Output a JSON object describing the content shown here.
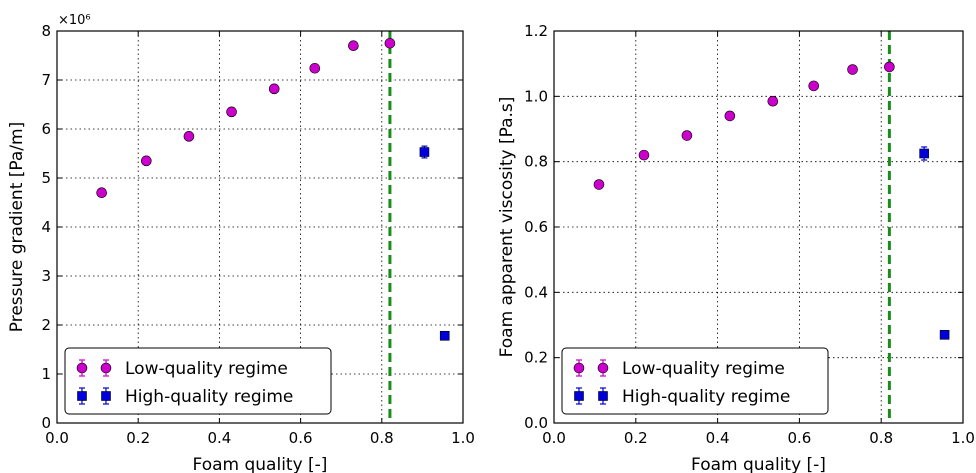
{
  "chart_data": [
    {
      "type": "scatter",
      "xlabel": "Foam quality [-]",
      "ylabel": "Pressure gradient [Pa/m]",
      "y_multiplier_label": "×10⁶",
      "xlim": [
        0.0,
        1.0
      ],
      "ylim": [
        0,
        8
      ],
      "xticks": [
        "0.0",
        "0.2",
        "0.4",
        "0.6",
        "0.8",
        "1.0"
      ],
      "yticks": [
        "0",
        "1",
        "2",
        "3",
        "4",
        "5",
        "6",
        "7",
        "8"
      ],
      "grid": true,
      "vline": {
        "x": 0.82,
        "color": "#1a8c1a",
        "style": "dashed"
      },
      "legend_position": "lower-left",
      "series": [
        {
          "name": "Low-quality regime",
          "marker": "circle",
          "color": "#cc00cc",
          "x": [
            0.11,
            0.22,
            0.325,
            0.43,
            0.535,
            0.635,
            0.73,
            0.82
          ],
          "y": [
            4.7,
            5.35,
            5.85,
            6.35,
            6.82,
            7.24,
            7.7,
            7.75
          ],
          "yerr": [
            0.04,
            0.04,
            0.04,
            0.04,
            0.04,
            0.04,
            0.04,
            0.04
          ]
        },
        {
          "name": "High-quality regime",
          "marker": "square",
          "color": "#0000dd",
          "x": [
            0.905,
            0.955
          ],
          "y": [
            5.53,
            1.78
          ],
          "yerr": [
            0.12,
            0.04
          ]
        }
      ]
    },
    {
      "type": "scatter",
      "xlabel": "Foam quality [-]",
      "ylabel": "Foam apparent viscosity [Pa.s]",
      "xlim": [
        0.0,
        1.0
      ],
      "ylim": [
        0.0,
        1.2
      ],
      "xticks": [
        "0.0",
        "0.2",
        "0.4",
        "0.6",
        "0.8",
        "1.0"
      ],
      "yticks": [
        "0.0",
        "0.2",
        "0.4",
        "0.6",
        "0.8",
        "1.0",
        "1.2"
      ],
      "grid": true,
      "vline": {
        "x": 0.82,
        "color": "#1a8c1a",
        "style": "dashed"
      },
      "legend_position": "lower-left",
      "series": [
        {
          "name": "Low-quality regime",
          "marker": "circle",
          "color": "#cc00cc",
          "x": [
            0.11,
            0.22,
            0.325,
            0.43,
            0.535,
            0.635,
            0.73,
            0.82
          ],
          "y": [
            0.73,
            0.82,
            0.88,
            0.94,
            0.985,
            1.032,
            1.082,
            1.09
          ],
          "yerr": [
            0.005,
            0.005,
            0.005,
            0.005,
            0.005,
            0.005,
            0.005,
            0.005
          ]
        },
        {
          "name": "High-quality regime",
          "marker": "square",
          "color": "#0000dd",
          "x": [
            0.905,
            0.955
          ],
          "y": [
            0.825,
            0.27
          ],
          "yerr": [
            0.02,
            0.006
          ]
        }
      ]
    }
  ]
}
